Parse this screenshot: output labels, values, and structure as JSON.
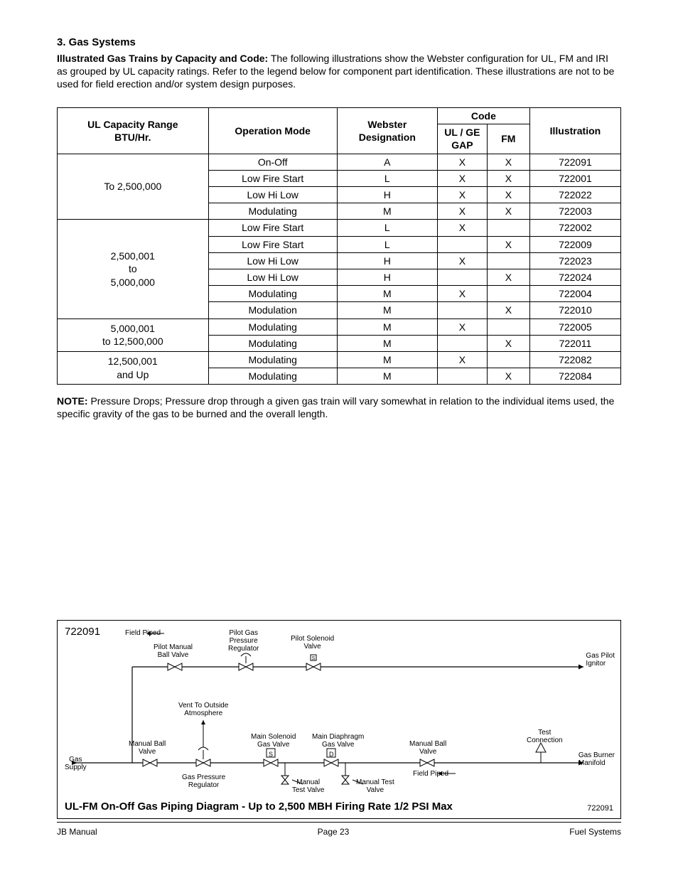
{
  "section": {
    "title": "3. Gas Systems",
    "intro_lead": "Illustrated Gas Trains by Capacity and Code:",
    "intro_body": " The following illustrations show the Webster configuration for UL, FM and IRI as grouped by UL capacity ratings.  Refer to the legend below for component part identification.  These illustrations are not to be used for field erection and/or system design purposes."
  },
  "table": {
    "headers": {
      "c1a": "UL Capacity Range",
      "c1b": "BTU/Hr.",
      "c2": "Operation Mode",
      "c3a": "Webster",
      "c3b": "Designation",
      "c4": "Code",
      "c4a": "UL / GE GAP",
      "c4b": "FM",
      "c5": "Illustration"
    },
    "g1": {
      "cap": "To 2,500,000",
      "r1": {
        "mode": "On-Off",
        "des": "A",
        "ul": "X",
        "fm": "X",
        "ill": "722091"
      },
      "r2": {
        "mode": "Low Fire Start",
        "des": "L",
        "ul": "X",
        "fm": "X",
        "ill": "722001"
      },
      "r3": {
        "mode": "Low Hi Low",
        "des": "H",
        "ul": "X",
        "fm": "X",
        "ill": "722022"
      },
      "r4": {
        "mode": "Modulating",
        "des": "M",
        "ul": "X",
        "fm": "X",
        "ill": "722003"
      }
    },
    "g2": {
      "cap_a": "2,500,001",
      "cap_b": "to",
      "cap_c": "5,000,000",
      "r1": {
        "mode": "Low Fire Start",
        "des": "L",
        "ul": "X",
        "fm": "",
        "ill": "722002"
      },
      "r2": {
        "mode": "Low Fire Start",
        "des": "L",
        "ul": "",
        "fm": "X",
        "ill": "722009"
      },
      "r3": {
        "mode": "Low Hi Low",
        "des": "H",
        "ul": "X",
        "fm": "",
        "ill": "722023"
      },
      "r4": {
        "mode": "Low Hi Low",
        "des": "H",
        "ul": "",
        "fm": "X",
        "ill": "722024"
      },
      "r5": {
        "mode": "Modulating",
        "des": "M",
        "ul": "X",
        "fm": "",
        "ill": "722004"
      },
      "r6": {
        "mode": "Modulation",
        "des": "M",
        "ul": "",
        "fm": "X",
        "ill": "722010"
      }
    },
    "g3": {
      "cap_a": "5,000,001",
      "cap_b": "to 12,500,000",
      "r1": {
        "mode": "Modulating",
        "des": "M",
        "ul": "X",
        "fm": "",
        "ill": "722005"
      },
      "r2": {
        "mode": "Modulating",
        "des": "M",
        "ul": "",
        "fm": "X",
        "ill": "722011"
      }
    },
    "g4": {
      "cap_a": "12,500,001",
      "cap_b": "and Up",
      "r1": {
        "mode": "Modulating",
        "des": "M",
        "ul": "X",
        "fm": "",
        "ill": "722082"
      },
      "r2": {
        "mode": "Modulating",
        "des": "M",
        "ul": "",
        "fm": "X",
        "ill": "722084"
      }
    }
  },
  "note": {
    "lead": "NOTE:",
    "body": "  Pressure Drops; Pressure drop through a given gas train will vary somewhat in relation to the individual items used, the specific gravity of the gas to be burned and the overall length."
  },
  "diagram": {
    "number": "722091",
    "title": "UL-FM  On-Off Gas Piping Diagram - Up to 2,500 MBH Firing Rate   1/2 PSI Max",
    "footnum": "722091",
    "labels": {
      "field_piped_top": "Field Piped",
      "pilot_manual_ball_valve": "Pilot Manual\nBall Valve",
      "pilot_gas_pressure_regulator": "Pilot Gas\nPressure\nRegulator",
      "pilot_solenoid_valve": "Pilot Solenoid\nValve",
      "gas_pilot_ignitor": "Gas Pilot\nIgnitor",
      "vent": "Vent To Outside\nAtmosphere",
      "manual_ball_valve_left": "Manual Ball\nValve",
      "gas_supply": "Gas\nSupply",
      "gas_pressure_regulator": "Gas Pressure\nRegulator",
      "main_solenoid_gas_valve": "Main Solenoid\nGas Valve",
      "main_diaphragm_gas_valve": "Main Diaphragm\nGas Valve",
      "manual_test_valve_left": "Manual\nTest Valve",
      "manual_test_valve_right": "Manual Test\nValve",
      "manual_ball_valve_right": "Manual Ball\nValve",
      "field_piped_bottom": "Field Piped",
      "test_connection": "Test\nConnection",
      "gas_burner_manifold": "Gas Burner\nManifold",
      "s_box": "S",
      "d_box": "D"
    }
  },
  "footer": {
    "left": "JB Manual",
    "center": "Page 23",
    "right": "Fuel Systems"
  }
}
